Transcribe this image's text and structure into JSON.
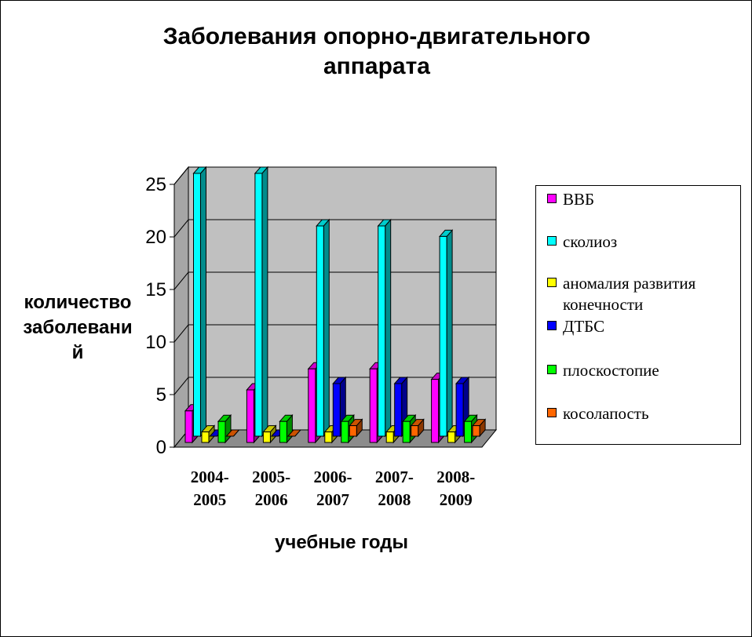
{
  "chart_data": {
    "type": "bar",
    "title": "Заболевания опорно-двигательного аппарата",
    "title_lines": [
      "Заболевания опорно-двигательного",
      "аппарата"
    ],
    "ylabel": "количество заболеваний",
    "ylabel_lines": [
      "количество",
      "заболевани",
      "й"
    ],
    "xlabel": "учебные годы",
    "categories": [
      "2004-2005",
      "2005-2006",
      "2006-2007",
      "2007-2008",
      "2008-2009"
    ],
    "category_lines": [
      [
        "2004-",
        "2005"
      ],
      [
        "2005-",
        "2006"
      ],
      [
        "2006-",
        "2007"
      ],
      [
        "2007-",
        "2008"
      ],
      [
        "2008-",
        "2009"
      ]
    ],
    "ylim": [
      0,
      25
    ],
    "yticks": [
      "0",
      "5",
      "10",
      "15",
      "20",
      "25"
    ],
    "grid": true,
    "legend_position": "right",
    "series": [
      {
        "name": "ВВБ",
        "color": "#FF00FF",
        "values": [
          3,
          5,
          7,
          7,
          6
        ]
      },
      {
        "name": "сколиоз",
        "color": "#00FFFF",
        "values": [
          25,
          25,
          20,
          20,
          19
        ]
      },
      {
        "name": "аномалия развития конечности",
        "color": "#FFFF00",
        "values": [
          1,
          1,
          1,
          1,
          1
        ]
      },
      {
        "name": "ДТБС",
        "color": "#0000FF",
        "values": [
          0,
          0,
          5,
          5,
          5
        ]
      },
      {
        "name": "плоскостопие",
        "color": "#00FF00",
        "values": [
          2,
          2,
          2,
          2,
          2
        ]
      },
      {
        "name": "косолапость",
        "color": "#FF6600",
        "values": [
          0,
          0,
          1,
          1,
          1
        ]
      }
    ]
  }
}
